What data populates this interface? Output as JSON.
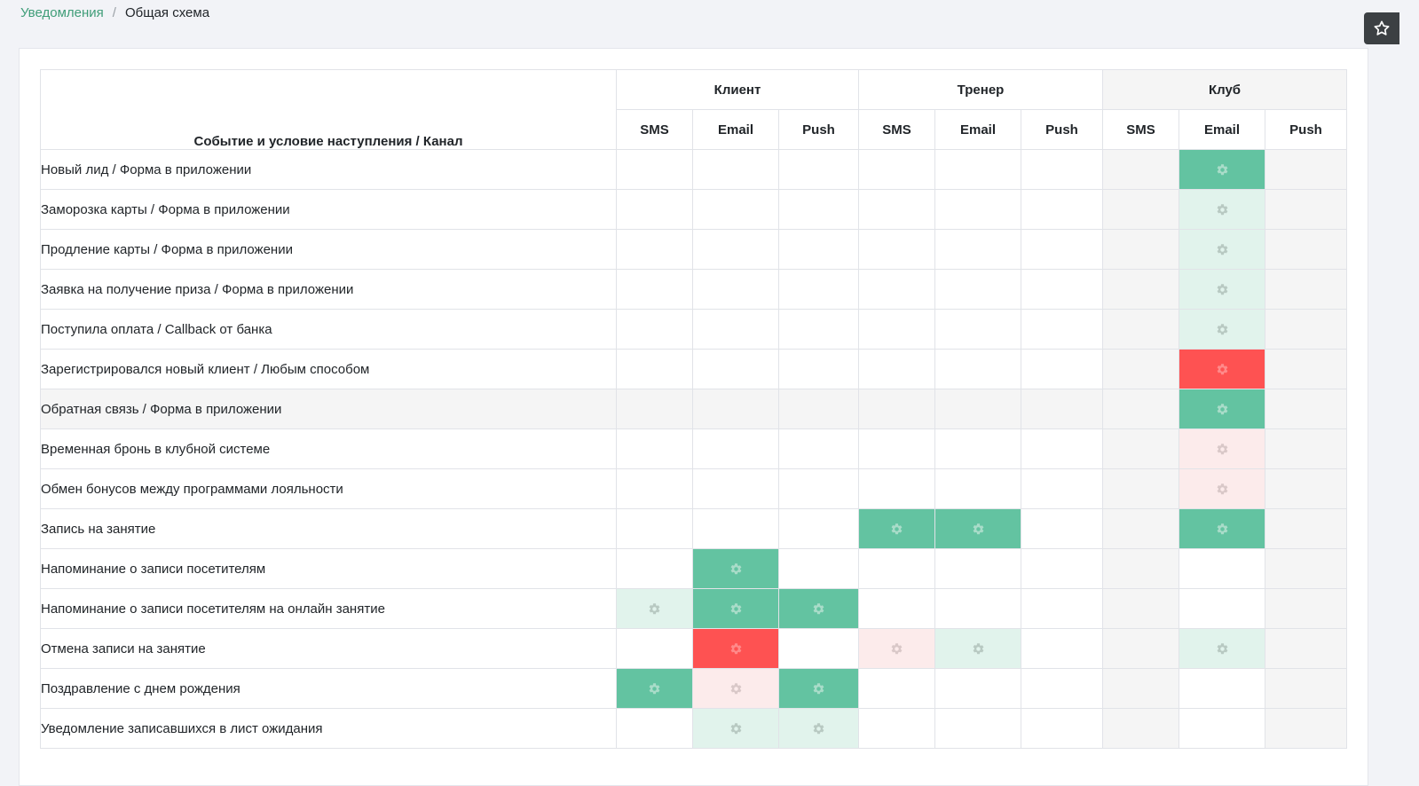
{
  "breadcrumb": {
    "parent": "Уведомления",
    "separator": "/",
    "current": "Общая схема"
  },
  "icons": {
    "favorite": "star-icon",
    "settings": "gear-icon"
  },
  "colors": {
    "accent": "#3f9d78",
    "active_enabled": "#63c3a1",
    "inactive_enabled": "#e1f3ec",
    "active_error": "#fe5252",
    "inactive_error": "#fcebeb"
  },
  "table": {
    "event_header": "Событие и условие наступления / Канал",
    "groups": [
      {
        "label": "Клиент",
        "channels": [
          "SMS",
          "Email",
          "Push"
        ]
      },
      {
        "label": "Тренер",
        "channels": [
          "SMS",
          "Email",
          "Push"
        ]
      },
      {
        "label": "Клуб",
        "channels": [
          "SMS",
          "Email",
          "Push"
        ]
      }
    ],
    "legend_states": {
      "G": "enabled (active)",
      "g": "enabled (inactive)",
      "R": "error (active)",
      "r": "error (inactive)",
      "-": "not configured"
    },
    "rows": [
      {
        "label": "Новый лид / Форма в приложении",
        "cells": [
          "-",
          "-",
          "-",
          "-",
          "-",
          "-",
          "-",
          "G",
          "-"
        ]
      },
      {
        "label": "Заморозка карты / Форма в приложении",
        "cells": [
          "-",
          "-",
          "-",
          "-",
          "-",
          "-",
          "-",
          "g",
          "-"
        ]
      },
      {
        "label": "Продление карты / Форма в приложении",
        "cells": [
          "-",
          "-",
          "-",
          "-",
          "-",
          "-",
          "-",
          "g",
          "-"
        ]
      },
      {
        "label": "Заявка на получение приза / Форма в приложении",
        "cells": [
          "-",
          "-",
          "-",
          "-",
          "-",
          "-",
          "-",
          "g",
          "-"
        ]
      },
      {
        "label": "Поступила оплата / Callback от банка",
        "cells": [
          "-",
          "-",
          "-",
          "-",
          "-",
          "-",
          "-",
          "g",
          "-"
        ]
      },
      {
        "label": "Зарегистрировался новый клиент / Любым способом",
        "cells": [
          "-",
          "-",
          "-",
          "-",
          "-",
          "-",
          "-",
          "R",
          "-"
        ]
      },
      {
        "label": "Обратная связь / Форма в приложении",
        "cells": [
          "-",
          "-",
          "-",
          "-",
          "-",
          "-",
          "-",
          "G",
          "-"
        ],
        "highlight": true
      },
      {
        "label": "Временная бронь в клубной системе",
        "cells": [
          "-",
          "-",
          "-",
          "-",
          "-",
          "-",
          "-",
          "r",
          "-"
        ]
      },
      {
        "label": "Обмен бонусов между программами лояльности",
        "cells": [
          "-",
          "-",
          "-",
          "-",
          "-",
          "-",
          "-",
          "r",
          "-"
        ]
      },
      {
        "label": "Запись на занятие",
        "cells": [
          "-",
          "-",
          "-",
          "G",
          "G",
          "-",
          "-",
          "G",
          "-"
        ]
      },
      {
        "label": "Напоминание о записи посетителям",
        "cells": [
          "-",
          "G",
          "-",
          "-",
          "-",
          "-",
          "-",
          "-",
          "-"
        ]
      },
      {
        "label": "Напоминание о записи посетителям на онлайн занятие",
        "cells": [
          "g",
          "G",
          "G",
          "-",
          "-",
          "-",
          "-",
          "-",
          "-"
        ]
      },
      {
        "label": "Отмена записи на занятие",
        "cells": [
          "-",
          "R",
          "-",
          "r",
          "g",
          "-",
          "-",
          "g",
          "-"
        ]
      },
      {
        "label": "Поздравление с днем рождения",
        "cells": [
          "G",
          "r",
          "G",
          "-",
          "-",
          "-",
          "-",
          "-",
          "-"
        ]
      },
      {
        "label": "Уведомление записавшихся в лист ожидания",
        "cells": [
          "-",
          "g",
          "g",
          "-",
          "-",
          "-",
          "-",
          "-",
          "-"
        ]
      }
    ]
  }
}
